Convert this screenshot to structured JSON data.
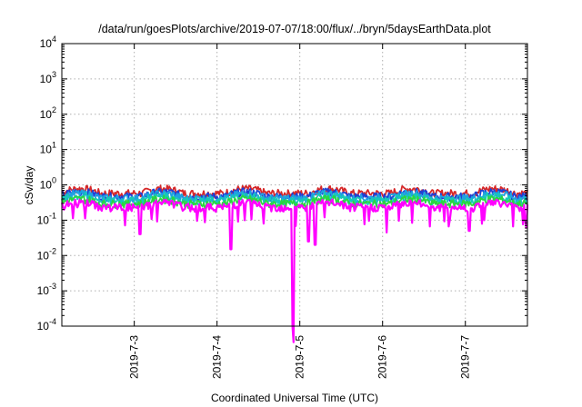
{
  "chart_data": {
    "type": "area",
    "title": "/data/run/goesPlots/archive/2019-07-07/18:00/flux/../bryn/5daysEarthData.plot",
    "xlabel": "Coordinated Universal Time (UTC)",
    "ylabel": "cSv/day",
    "y_scale": "log",
    "ylim": [
      0.0001,
      10000
    ],
    "xlim": [
      "2019-07-02 03:00",
      "2019-07-07 18:00"
    ],
    "grid": true,
    "y_ticks": [
      {
        "base": "10",
        "exp": "-4"
      },
      {
        "base": "10",
        "exp": "-3"
      },
      {
        "base": "10",
        "exp": "-2"
      },
      {
        "base": "10",
        "exp": "-1"
      },
      {
        "base": "10",
        "exp": "0"
      },
      {
        "base": "10",
        "exp": "1"
      },
      {
        "base": "10",
        "exp": "2"
      },
      {
        "base": "10",
        "exp": "3"
      },
      {
        "base": "10",
        "exp": "4"
      }
    ],
    "x_ticks": [
      "2019-7-3",
      "2019-7-4",
      "2019-7-5",
      "2019-7-6",
      "2019-7-7"
    ],
    "x_tick_days": [
      1,
      2,
      3,
      4,
      5
    ],
    "series": [
      {
        "color": "#d62728",
        "base_level": 0.55
      },
      {
        "color": "#1f3fd6",
        "base_level": 0.45
      },
      {
        "color": "#1fa2e0",
        "base_level": 0.4
      },
      {
        "color": "#17c9b8",
        "base_level": 0.34
      },
      {
        "color": "#2bd63f",
        "base_level": 0.28
      },
      {
        "color": "#ff00ff",
        "base_level": 0.22
      }
    ],
    "minimum_dip": {
      "day": 2.92,
      "value": 0.0001
    },
    "daily_dips": [
      {
        "day": 1.07,
        "value": 0.04
      },
      {
        "day": 2.17,
        "value": 0.015
      },
      {
        "day": 3.1,
        "value": 0.025
      },
      {
        "day": 3.18,
        "value": 0.02
      },
      {
        "day": 4.05,
        "value": 0.045
      },
      {
        "day": 5.05,
        "value": 0.05
      }
    ]
  }
}
